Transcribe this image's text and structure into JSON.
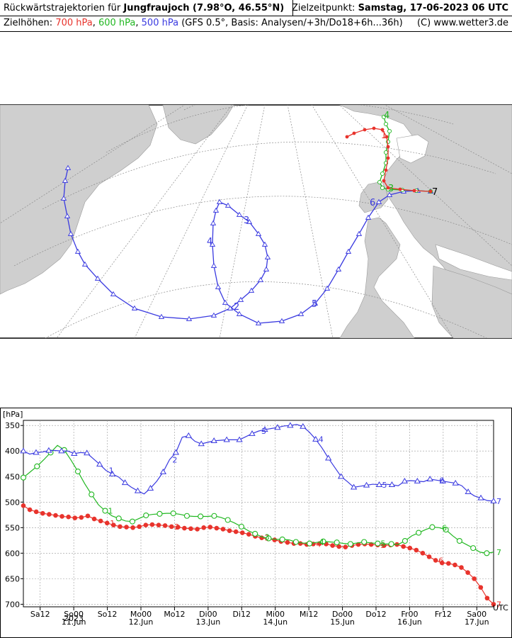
{
  "header": {
    "title_prefix": "Rückwärtstrajektorien für ",
    "station": "Jungfraujoch (7.98°O, 46.55°N)",
    "target_label": "Zielzeitpunkt: ",
    "target_time": "Samstag, 17-06-2023  06 UTC",
    "heights_label": "Zielhöhen: ",
    "h700": "700 hPa",
    "h600": "600 hPa",
    "h500": "500 hPa",
    "sep": ", ",
    "info": " (GFS 0.5°, Basis: Analysen/+3h/Do18+6h...36h)",
    "copyright": "(C) www.wetter3.de"
  },
  "colors": {
    "p700": "#e8332c",
    "p600": "#22b822",
    "p500": "#3a3ae0"
  },
  "map": {
    "day_labels": [
      "2",
      "3",
      "4",
      "5",
      "6",
      "7",
      "1",
      "3",
      "4"
    ]
  },
  "chart_data": {
    "type": "line",
    "ylabel": "[hPa]",
    "y_inverted": true,
    "ylim": [
      340,
      705
    ],
    "yticks": [
      350,
      400,
      450,
      500,
      550,
      600,
      650,
      700
    ],
    "xlim_hours": [
      0,
      162
    ],
    "x_start": "2023-06-10 12 UTC",
    "x_unit_label": "UTC",
    "xticks": [
      {
        "h": 0,
        "label": "Sa12",
        "sub": ""
      },
      {
        "h": 12,
        "label": "So00",
        "sub": "11.Jun"
      },
      {
        "h": 24,
        "label": "So12",
        "sub": ""
      },
      {
        "h": 36,
        "label": "Mo00",
        "sub": "12.Jun"
      },
      {
        "h": 48,
        "label": "Mo12",
        "sub": ""
      },
      {
        "h": 60,
        "label": "Di00",
        "sub": "13.Jun"
      },
      {
        "h": 72,
        "label": "Di12",
        "sub": ""
      },
      {
        "h": 84,
        "label": "Mi00",
        "sub": "14.Jun"
      },
      {
        "h": 96,
        "label": "Mi12",
        "sub": ""
      },
      {
        "h": 108,
        "label": "Do00",
        "sub": "15.Jun"
      },
      {
        "h": 120,
        "label": "Do12",
        "sub": ""
      },
      {
        "h": 132,
        "label": "Fr00",
        "sub": "16.Jun"
      },
      {
        "h": 144,
        "label": "Fr12",
        "sub": ""
      },
      {
        "h": 156,
        "label": "Sa00",
        "sub": "17.Jun"
      }
    ],
    "year_label": "2023",
    "hours_before_start": 6,
    "series": [
      {
        "name": "700 hPa",
        "color": "#e8332c",
        "marker": "dot",
        "values": [
          507,
          515,
          519,
          522,
          524,
          526,
          528,
          529,
          531,
          530,
          527,
          533,
          537,
          541,
          545,
          548,
          549,
          550,
          548,
          545,
          544,
          545,
          546,
          548,
          549,
          551,
          552,
          553,
          550,
          549,
          551,
          553,
          556,
          558,
          560,
          563,
          567,
          570,
          572,
          574,
          577,
          579,
          581,
          581,
          583,
          582,
          581,
          582,
          585,
          587,
          588,
          585,
          583,
          582,
          583,
          584,
          585,
          584,
          583,
          587,
          590,
          594,
          600,
          607,
          614,
          619,
          620,
          623,
          628,
          638,
          650,
          667,
          688,
          700
        ]
      },
      {
        "name": "600 hPa",
        "color": "#22b822",
        "marker": "circle",
        "values": [
          452,
          441,
          430,
          417,
          403,
          389,
          398,
          418,
          440,
          464,
          485,
          505,
          517,
          527,
          532,
          537,
          538,
          532,
          526,
          524,
          523,
          522,
          522,
          524,
          527,
          528,
          528,
          528,
          527,
          530,
          535,
          541,
          548,
          556,
          562,
          568,
          571,
          573,
          573,
          574,
          578,
          580,
          581,
          579,
          577,
          578,
          579,
          581,
          582,
          580,
          578,
          580,
          581,
          582,
          582,
          583,
          576,
          566,
          560,
          554,
          549,
          550,
          554,
          566,
          576,
          583,
          590,
          598,
          600,
          598
        ]
      },
      {
        "name": "500 hPa",
        "color": "#3a3ae0",
        "marker": "triangle",
        "values": [
          400,
          406,
          403,
          402,
          399,
          399,
          400,
          400,
          405,
          403,
          404,
          415,
          426,
          438,
          445,
          451,
          462,
          471,
          478,
          484,
          473,
          459,
          441,
          417,
          403,
          373,
          370,
          381,
          386,
          383,
          380,
          379,
          378,
          378,
          378,
          372,
          366,
          361,
          358,
          356,
          354,
          351,
          350,
          348,
          352,
          363,
          377,
          394,
          414,
          432,
          450,
          460,
          471,
          469,
          467,
          465,
          466,
          465,
          466,
          468,
          459,
          458,
          459,
          460,
          455,
          457,
          459,
          461,
          463,
          468,
          480,
          488,
          492,
          497,
          498
        ]
      }
    ],
    "series_labels": [
      {
        "s": 0,
        "text": "1"
      },
      {
        "s": 0,
        "text": "2"
      },
      {
        "s": 0,
        "text": "3"
      },
      {
        "s": 0,
        "text": "4"
      },
      {
        "s": 0,
        "text": "5"
      },
      {
        "s": 0,
        "text": "6"
      },
      {
        "s": 0,
        "text": "7"
      },
      {
        "s": 1,
        "text": "1"
      },
      {
        "s": 1,
        "text": "3"
      },
      {
        "s": 1,
        "text": "4"
      },
      {
        "s": 1,
        "text": "5"
      },
      {
        "s": 1,
        "text": "6"
      },
      {
        "s": 1,
        "text": "7"
      },
      {
        "s": 2,
        "text": "1"
      },
      {
        "s": 2,
        "text": "2"
      },
      {
        "s": 2,
        "text": "3"
      },
      {
        "s": 2,
        "text": "4"
      },
      {
        "s": 2,
        "text": "5"
      },
      {
        "s": 2,
        "text": "6"
      },
      {
        "s": 2,
        "text": "7"
      }
    ]
  }
}
